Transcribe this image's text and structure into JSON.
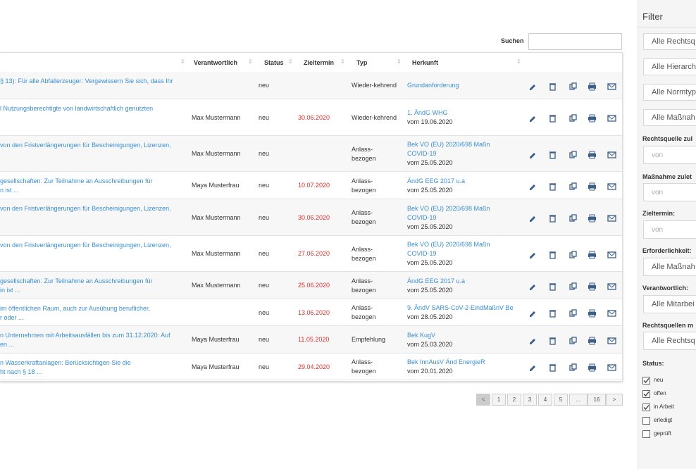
{
  "search_label": "Suchen",
  "table": {
    "headers": [
      "Verantwortlich",
      "Status",
      "Zieltermin",
      "Typ",
      "Herkunft"
    ],
    "rows": [
      {
        "title": [
          "§ 13): Für alle Abfallerzeuger: Vergewissern Sie sich, dass Ihr"
        ],
        "status": "neu",
        "type": [
          "Wieder-kehrend"
        ],
        "source": [
          "Grundanforderung"
        ]
      },
      {
        "title": [
          "l Nutzungsberechtigte von landwirtschaftlich genutzten"
        ],
        "responsible": "Max Mustermann",
        "status": "neu",
        "due": "30.06.2020",
        "type": [
          "Wieder-kehrend"
        ],
        "source": [
          "1. ÄndG WHG"
        ],
        "date": "vom 19.06.2020"
      },
      {
        "title": [
          "von den Fristverlängerungen für Bescheinigungen, Lizenzen,"
        ],
        "responsible": "Max Mustermann",
        "status": "neu",
        "type": [
          "Anlass-",
          "bezogen"
        ],
        "source": [
          "Bek VO (EU) 2020/698 Maßn",
          "COVID-19"
        ],
        "date": "vom 25.05.2020"
      },
      {
        "title": [
          "gesellschaften: Zur Teilnahme an Ausschreibungen für",
          "n ist ..."
        ],
        "responsible": "Maya Musterfrau",
        "status": "neu",
        "due": "10.07.2020",
        "type": [
          "Anlass-",
          "bezogen"
        ],
        "source": [
          "ÄndG EEG 2017 u.a"
        ],
        "date": "vom 25.05.2020"
      },
      {
        "title": [
          "von den Fristverlängerungen für Bescheinigungen, Lizenzen,"
        ],
        "responsible": "Max Mustermann",
        "status": "neu",
        "due": "30.06.2020",
        "type": [
          "Anlass-",
          "bezogen"
        ],
        "source": [
          "Bek VO (EU) 2020/698 Maßn",
          "COVID-19"
        ],
        "date": "vom 25.05.2020"
      },
      {
        "title": [
          "von den Fristverlängerungen für Bescheinigungen, Lizenzen,"
        ],
        "responsible": "Max Mustermann",
        "status": "neu",
        "due": "27.06.2020",
        "type": [
          "Anlass-",
          "bezogen"
        ],
        "source": [
          "Bek VO (EU) 2020/698 Maßn",
          "COVID-19"
        ],
        "date": "vom 25.05.2020"
      },
      {
        "title": [
          "gesellschaften: Zur Teilnahme an Ausschreibungen für",
          "in ist ..."
        ],
        "responsible": "Max Mustermann",
        "status": "neu",
        "due": "25.06.2020",
        "type": [
          "Anlass-",
          "bezogen"
        ],
        "source": [
          "ÄndG EEG 2017 u.a"
        ],
        "date": "vom 25.05.2020"
      },
      {
        "title": [
          "im öffentlichen Raum, auch zur Ausübung beruflicher,",
          "r oder ..."
        ],
        "status": "neu",
        "due": "13.06.2020",
        "type": [
          "Anlass-",
          "bezogen"
        ],
        "source": [
          "9. ÄndV SARS-CoV-2-EindMaßnV Be"
        ],
        "date": "vom 28.05.2020"
      },
      {
        "title": [
          "n Unternehmen mit Arbeitsausfällen bis zum 31.12.2020: Auf",
          "en ..."
        ],
        "responsible": "Maya Musterfrau",
        "status": "neu",
        "due": "11.05.2020",
        "type": [
          "Empfehlung"
        ],
        "source": [
          "Bek KugV"
        ],
        "date": "vom 25.03.2020"
      },
      {
        "title": [
          "n Wasserkraftanlagen: Berücksichtigen Sie die",
          "ht nach § 18 ..."
        ],
        "responsible": "Maya Musterfrau",
        "status": "neu",
        "due": "29.04.2020",
        "type": [
          "Anlass-",
          "bezogen"
        ],
        "source": [
          "Bek InnAusV Änd EnergieR"
        ],
        "date": "vom 20.01.2020"
      }
    ]
  },
  "pagination": [
    "<",
    "1",
    "2",
    "3",
    "4",
    "5",
    "...",
    "16",
    ">"
  ],
  "filter": {
    "title": "Filter",
    "selects": [
      "Alle Rechtsq",
      "Alle Hierarch",
      "Alle Normtyp",
      "Alle Maßnah"
    ],
    "fields": [
      {
        "label": "Rechtsquelle zul",
        "placeholder": "von"
      },
      {
        "label": "Maßnahme zulet",
        "placeholder": "von"
      },
      {
        "label": "Zieltermin:",
        "placeholder": "von"
      },
      {
        "label": "Erforderlichkeit:",
        "select": "Alle Maßnah"
      },
      {
        "label": "Verantwortlich:",
        "select": "Alle Mitarbei"
      },
      {
        "label": "Rechtsquellen m",
        "select": "Alle Rechtsq"
      }
    ],
    "status_label": "Status:",
    "status": [
      {
        "label": "neu",
        "checked": true
      },
      {
        "label": "offen",
        "checked": true
      },
      {
        "label": "in Arbeit",
        "checked": true
      },
      {
        "label": "erledigt",
        "checked": false
      },
      {
        "label": "geprüft",
        "checked": false
      }
    ]
  }
}
